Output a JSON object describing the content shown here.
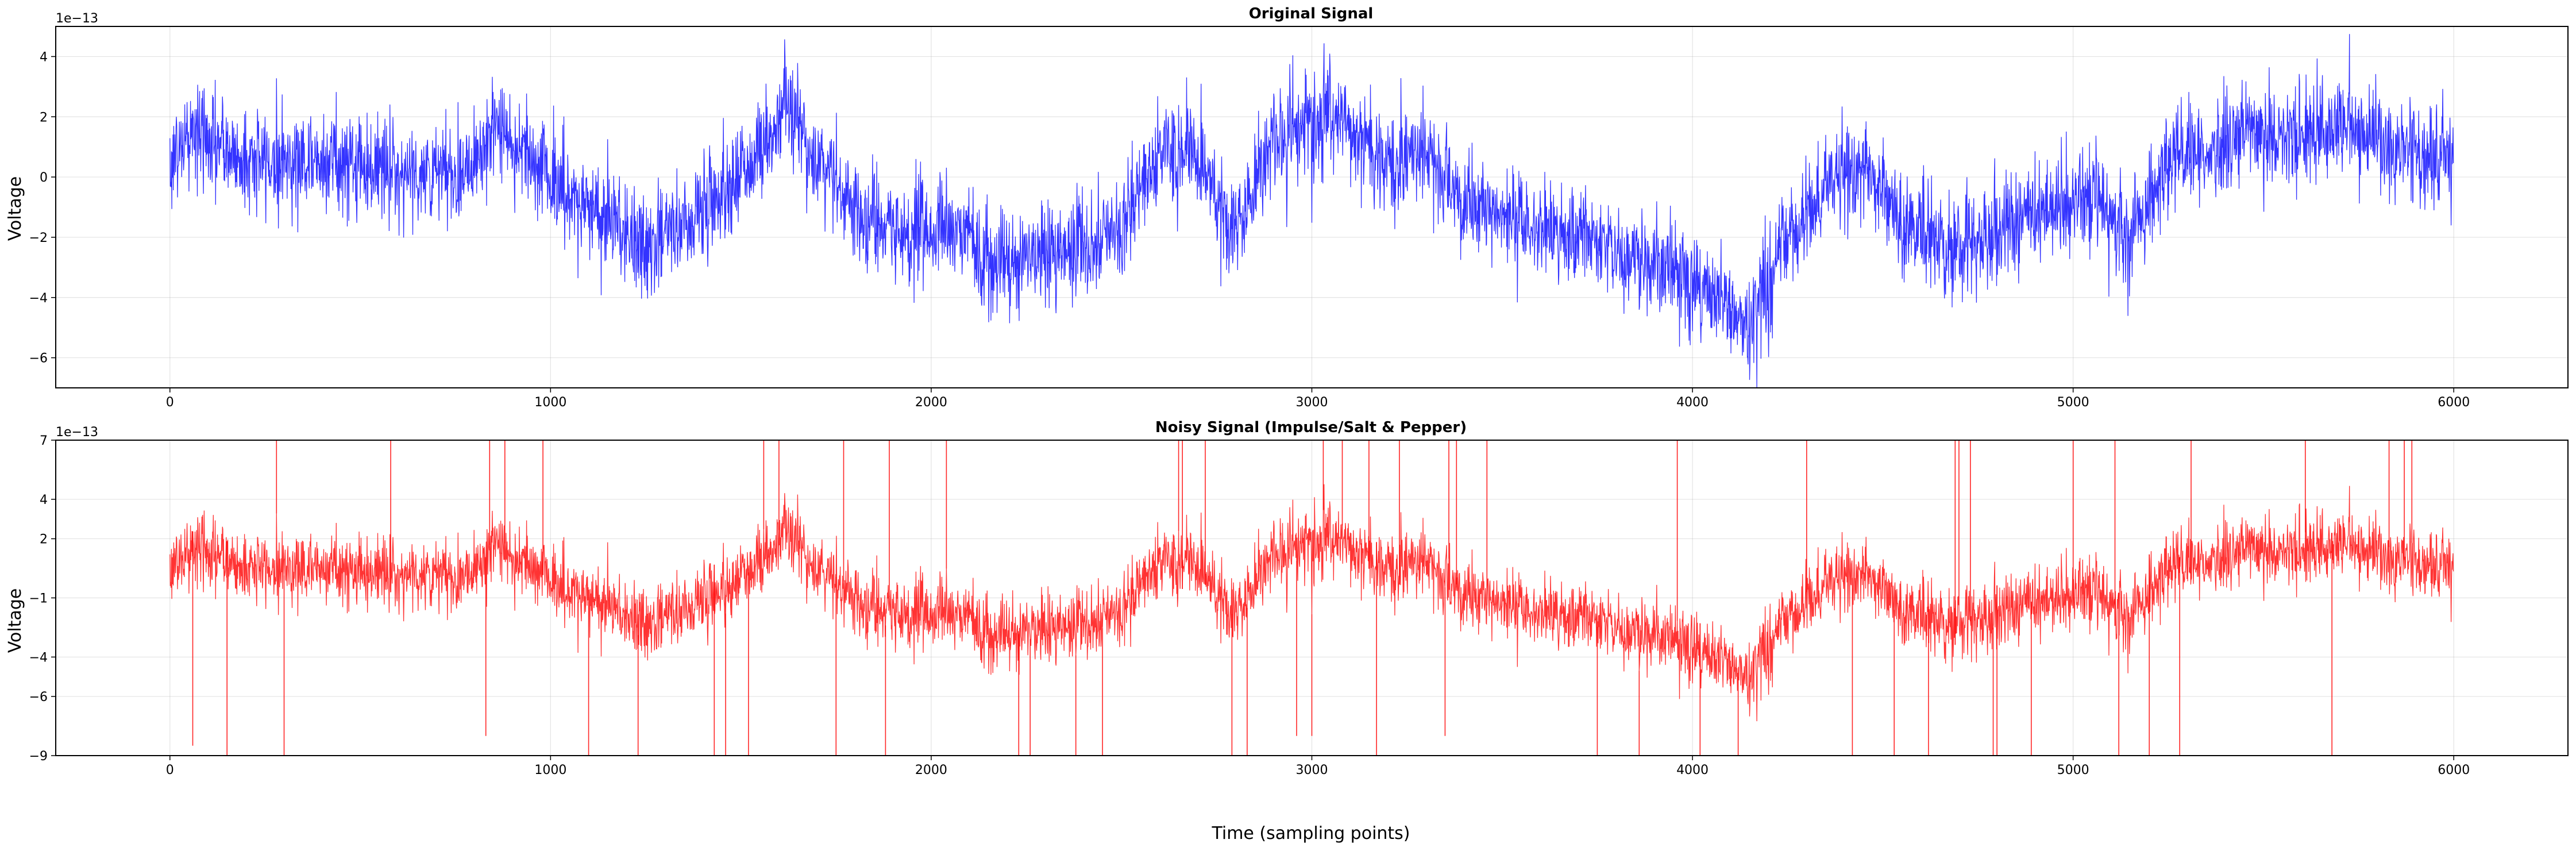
{
  "chart_data": [
    {
      "type": "line",
      "title": "Original Signal",
      "xlabel": "",
      "ylabel": "Voltage",
      "y_offset_label": "1e−13",
      "xlim": [
        -300,
        6300
      ],
      "ylim": [
        -7,
        5
      ],
      "xticks": [
        0,
        1000,
        2000,
        3000,
        4000,
        5000,
        6000
      ],
      "yticks": [
        -6,
        -4,
        -2,
        0,
        2,
        4
      ],
      "grid": true,
      "color": "#0000ff",
      "series": [
        {
          "n_points": 6000,
          "trend": {
            "x": [
              0,
              60,
              200,
              400,
              600,
              750,
              850,
              950,
              1050,
              1150,
              1250,
              1350,
              1450,
              1550,
              1620,
              1700,
              1800,
              1900,
              2000,
              2100,
              2200,
              2300,
              2400,
              2500,
              2600,
              2700,
              2800,
              2900,
              3000,
              3100,
              3200,
              3300,
              3400,
              3500,
              3600,
              3700,
              3800,
              3900,
              4000,
              4100,
              4150,
              4250,
              4350,
              4450,
              4550,
              4650,
              4750,
              4850,
              4950,
              5050,
              5150,
              5250,
              5350,
              5450,
              5550,
              5650,
              5750,
              5850,
              5950,
              6000
            ],
            "y": [
              0.5,
              1.5,
              0.5,
              0.6,
              0.2,
              0.0,
              1.5,
              0.8,
              -0.8,
              -1.2,
              -2.5,
              -1.5,
              -0.5,
              0.8,
              2.5,
              0.5,
              -1.0,
              -2.0,
              -1.8,
              -2.0,
              -3.0,
              -2.5,
              -2.2,
              -1.8,
              1.0,
              0.5,
              -2.0,
              1.5,
              2.0,
              1.5,
              0.5,
              0.8,
              -1.0,
              -1.2,
              -1.8,
              -2.0,
              -2.5,
              -3.0,
              -3.5,
              -4.5,
              -4.8,
              -2.0,
              -0.5,
              0.5,
              -1.5,
              -2.0,
              -2.5,
              -1.5,
              -0.8,
              -0.5,
              -2.0,
              0.5,
              0.8,
              1.5,
              1.2,
              1.8,
              1.5,
              1.0,
              0.5,
              0.2
            ]
          },
          "noise_std": 0.85
        }
      ]
    },
    {
      "type": "line",
      "title": "Noisy Signal (Impulse/Salt & Pepper)",
      "xlabel": "Time (sampling points)",
      "ylabel": "Voltage",
      "y_offset_label": "1e−13",
      "xlim": [
        -300,
        6300
      ],
      "ylim": [
        -9,
        7
      ],
      "xticks": [
        0,
        1000,
        2000,
        3000,
        4000,
        5000,
        6000
      ],
      "yticks": [
        -9,
        -6,
        -4,
        -1,
        2,
        4,
        7
      ],
      "grid": true,
      "color": "#ff0000",
      "series": [
        {
          "n_points": 6000,
          "same_base_as_original": true,
          "impulses": {
            "x": [
              60,
              150,
              280,
              300,
              580,
              830,
              840,
              880,
              980,
              1100,
              1230,
              1430,
              1460,
              1520,
              1560,
              1600,
              1750,
              1770,
              1880,
              1890,
              2040,
              2230,
              2260,
              2380,
              2450,
              2650,
              2660,
              2720,
              2790,
              2830,
              2960,
              3000,
              3030,
              3080,
              3150,
              3170,
              3230,
              3350,
              3360,
              3380,
              3460,
              3750,
              3860,
              3960,
              4020,
              4120,
              4300,
              4420,
              4530,
              4620,
              4690,
              4700,
              4730,
              4790,
              4800,
              4890,
              5000,
              5110,
              5120,
              5200,
              5280,
              5310,
              5610,
              5680,
              5830,
              5870,
              5890
            ],
            "y": [
              -8.5,
              -9,
              7,
              -9,
              7,
              -8,
              7,
              7,
              7,
              -9,
              -9,
              -9,
              -9,
              -9,
              7,
              7,
              -9,
              7,
              -9,
              7,
              7,
              -9,
              -9,
              -9,
              -9,
              7,
              7,
              7,
              -9,
              -9,
              -8,
              -8,
              7,
              7,
              7,
              -9,
              7,
              -8,
              7,
              7,
              7,
              -9,
              -9,
              7,
              -9,
              -9,
              7,
              -9,
              -9,
              -9,
              7,
              7,
              7,
              -9,
              -9,
              -9,
              7,
              7,
              -9,
              -9,
              -9,
              7,
              7,
              -9,
              7,
              7,
              7
            ]
          }
        }
      ]
    }
  ]
}
